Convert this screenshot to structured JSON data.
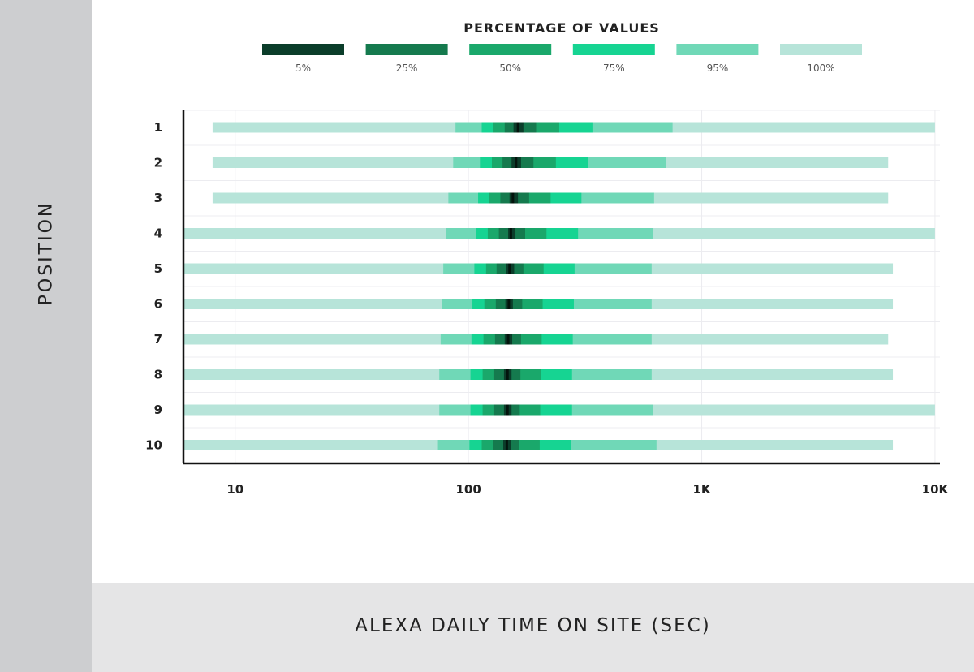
{
  "chart_data": {
    "type": "bar",
    "title": "",
    "xlabel": "ALEXA DAILY TIME ON SITE (SEC)",
    "ylabel": "POSITION",
    "x_scale": "log",
    "xlim": [
      6,
      10500
    ],
    "x_ticks": [
      {
        "value": 10,
        "label": "10"
      },
      {
        "value": 100,
        "label": "100"
      },
      {
        "value": 1000,
        "label": "1K"
      },
      {
        "value": 10000,
        "label": "10K"
      }
    ],
    "grid": true,
    "legend": {
      "title": "PERCENTAGE OF VALUES",
      "placement": "top",
      "items": [
        {
          "label": "5%",
          "color": "#0b3d2a"
        },
        {
          "label": "25%",
          "color": "#157a4e"
        },
        {
          "label": "50%",
          "color": "#1aa86b"
        },
        {
          "label": "75%",
          "color": "#16d492"
        },
        {
          "label": "95%",
          "color": "#70d8b7"
        },
        {
          "label": "100%",
          "color": "#b7e4d9"
        }
      ]
    },
    "categories": [
      "1",
      "2",
      "3",
      "4",
      "5",
      "6",
      "7",
      "8",
      "9",
      "10"
    ],
    "series": [
      {
        "name": "100%",
        "low": [
          8,
          8,
          8,
          6,
          6,
          6,
          6,
          6,
          6,
          6
        ],
        "high": [
          10000,
          6300,
          6300,
          10000,
          6600,
          6600,
          6300,
          6600,
          10000,
          6600
        ]
      },
      {
        "name": "95%",
        "low": [
          88,
          86,
          82,
          80,
          78,
          77,
          76,
          75,
          75,
          74
        ],
        "high": [
          750,
          705,
          625,
          620,
          610,
          610,
          610,
          610,
          620,
          640
        ]
      },
      {
        "name": "75%",
        "low": [
          114,
          112,
          110,
          108,
          106,
          104,
          103,
          102,
          102,
          101
        ],
        "high": [
          340,
          325,
          305,
          295,
          285,
          283,
          280,
          278,
          278,
          275
        ]
      },
      {
        "name": "50%",
        "low": [
          128,
          126,
          123,
          121,
          119,
          117,
          116,
          115,
          115,
          114
        ],
        "high": [
          245,
          237,
          225,
          216,
          210,
          208,
          206,
          204,
          203,
          202
        ]
      },
      {
        "name": "25%",
        "low": [
          143,
          140,
          137,
          135,
          132,
          131,
          130,
          129,
          129,
          128
        ],
        "high": [
          195,
          190,
          182,
          175,
          172,
          170,
          168,
          167,
          166,
          165
        ]
      },
      {
        "name": "5%",
        "low": [
          156,
          153,
          150,
          148,
          145,
          144,
          143,
          142,
          142,
          141
        ],
        "high": [
          172,
          168,
          163,
          159,
          157,
          155,
          154,
          153,
          153,
          152
        ]
      }
    ],
    "median": [
      163,
      160,
      155,
      152,
      150,
      149,
      148,
      147,
      147,
      146
    ]
  }
}
